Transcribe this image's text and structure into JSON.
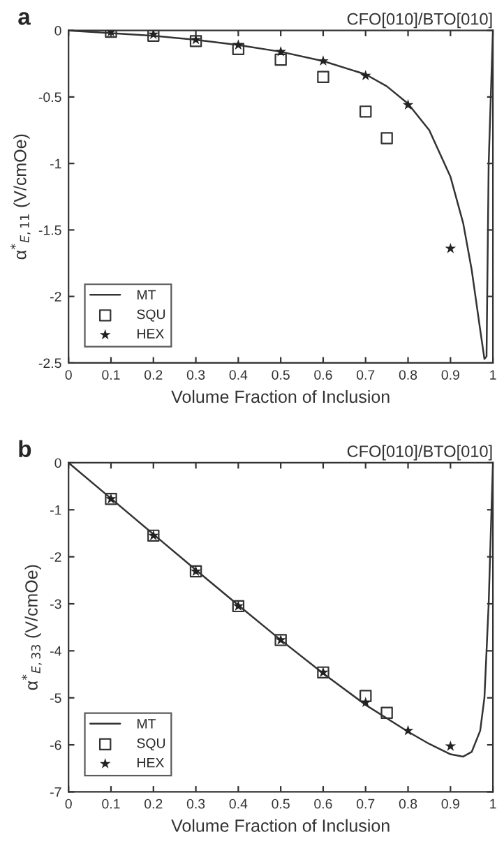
{
  "chart_data": [
    {
      "type": "line",
      "title": "a",
      "subtitle": "CFO[010]/BTO[010]",
      "xlabel": "Volume Fraction of Inclusion",
      "ylabel": "α$^{*}$$_{E,11}$ (V/cmOe)",
      "xlim": [
        0,
        1
      ],
      "xticks": [
        0,
        0.1,
        0.2,
        0.3,
        0.4,
        0.5,
        0.6,
        0.7,
        0.8,
        0.9,
        1
      ],
      "ylim": [
        -2.5,
        0
      ],
      "yticks": [
        -2.5,
        -2,
        -1.5,
        -1,
        -0.5,
        0
      ],
      "grid": false,
      "legend": "bottom left",
      "series": [
        {
          "name": "MT",
          "type": "line",
          "color": "#333333",
          "marker": "none",
          "x": [
            0,
            0.1,
            0.2,
            0.3,
            0.4,
            0.5,
            0.6,
            0.7,
            0.75,
            0.8,
            0.85,
            0.9,
            0.93,
            0.95,
            0.97,
            0.98,
            0.985,
            0.99,
            1
          ],
          "values": [
            0,
            -0.02,
            -0.04,
            -0.07,
            -0.11,
            -0.16,
            -0.23,
            -0.33,
            -0.42,
            -0.55,
            -0.75,
            -1.1,
            -1.45,
            -1.8,
            -2.25,
            -2.47,
            -2.45,
            -1.0,
            0
          ]
        },
        {
          "name": "SQU",
          "type": "scatter",
          "color": "#333333",
          "marker": "square",
          "x": [
            0.1,
            0.2,
            0.3,
            0.4,
            0.5,
            0.6,
            0.7,
            0.75
          ],
          "values": [
            -0.01,
            -0.04,
            -0.08,
            -0.14,
            -0.22,
            -0.35,
            -0.61,
            -0.81
          ]
        },
        {
          "name": "HEX",
          "type": "scatter",
          "color": "#222222",
          "marker": "star",
          "x": [
            0.1,
            0.2,
            0.3,
            0.4,
            0.5,
            0.6,
            0.7,
            0.8,
            0.9
          ],
          "values": [
            -0.01,
            -0.03,
            -0.07,
            -0.11,
            -0.16,
            -0.23,
            -0.34,
            -0.56,
            -1.64
          ]
        }
      ]
    },
    {
      "type": "line",
      "title": "b",
      "subtitle": "CFO[010]/BTO[010]",
      "xlabel": "Volume Fraction of Inclusion",
      "ylabel": "α$^{*}$$_{E,33}$ (V/cmOe)",
      "xlim": [
        0,
        1
      ],
      "xticks": [
        0,
        0.1,
        0.2,
        0.3,
        0.4,
        0.5,
        0.6,
        0.7,
        0.8,
        0.9,
        1
      ],
      "ylim": [
        -7,
        0
      ],
      "yticks": [
        -7,
        -6,
        -5,
        -4,
        -3,
        -2,
        -1,
        0
      ],
      "grid": false,
      "legend": "bottom left",
      "series": [
        {
          "name": "MT",
          "type": "line",
          "color": "#333333",
          "marker": "none",
          "x": [
            0,
            0.1,
            0.2,
            0.3,
            0.4,
            0.5,
            0.6,
            0.7,
            0.8,
            0.85,
            0.9,
            0.93,
            0.95,
            0.97,
            0.98,
            0.99,
            0.995,
            1
          ],
          "values": [
            0,
            -0.76,
            -1.52,
            -2.28,
            -3.03,
            -3.77,
            -4.48,
            -5.15,
            -5.72,
            -5.98,
            -6.2,
            -6.25,
            -6.15,
            -5.7,
            -5.0,
            -3.0,
            -1.5,
            0
          ]
        },
        {
          "name": "SQU",
          "type": "scatter",
          "color": "#333333",
          "marker": "square",
          "x": [
            0.1,
            0.2,
            0.3,
            0.4,
            0.5,
            0.6,
            0.7,
            0.75
          ],
          "values": [
            -0.77,
            -1.55,
            -2.31,
            -3.05,
            -3.77,
            -4.46,
            -4.96,
            -5.32
          ]
        },
        {
          "name": "HEX",
          "type": "scatter",
          "color": "#222222",
          "marker": "star",
          "x": [
            0.1,
            0.2,
            0.3,
            0.4,
            0.5,
            0.6,
            0.7,
            0.8,
            0.9
          ],
          "values": [
            -0.77,
            -1.55,
            -2.31,
            -3.05,
            -3.77,
            -4.46,
            -5.1,
            -5.7,
            -6.03
          ]
        }
      ]
    }
  ]
}
